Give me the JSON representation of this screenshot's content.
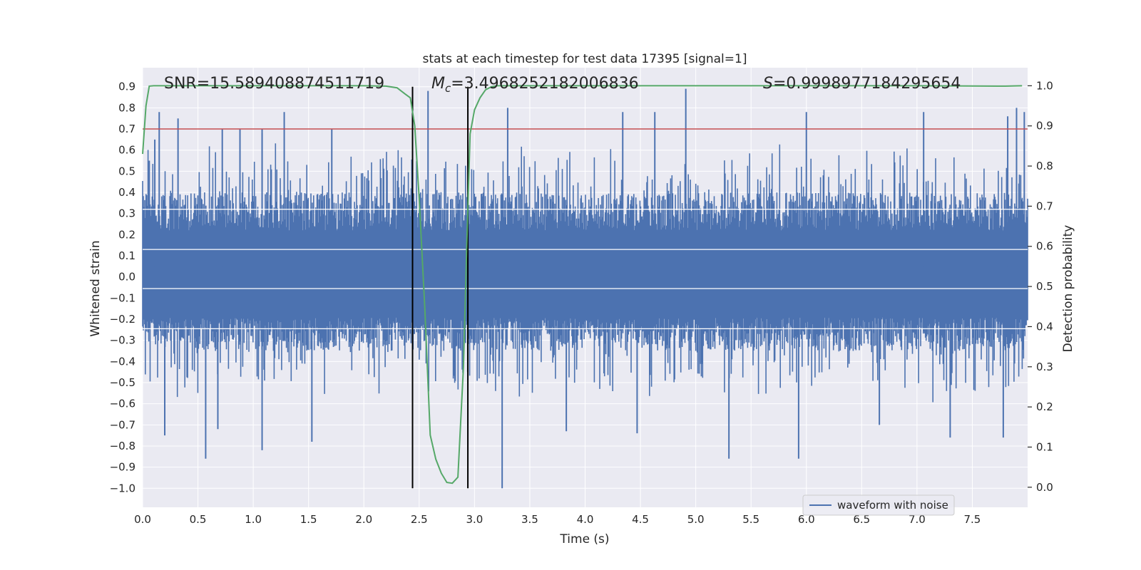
{
  "chart_data": {
    "type": "line",
    "title": "stats at each timestep for test data 17395 [signal=1]",
    "xlabel": "Time (s)",
    "ylabel_left": "Whitened strain",
    "ylabel_right": "Detection probability",
    "xlim": [
      0.0,
      8.0
    ],
    "ylim_left": [
      -1.09,
      0.99
    ],
    "ylim_right": [
      -0.05,
      1.045
    ],
    "x_ticks": [
      "0.0",
      "0.5",
      "1.0",
      "1.5",
      "2.0",
      "2.5",
      "3.0",
      "3.5",
      "4.0",
      "4.5",
      "5.0",
      "5.5",
      "6.0",
      "6.5",
      "7.0",
      "7.5"
    ],
    "x_tick_values": [
      0.0,
      0.5,
      1.0,
      1.5,
      2.0,
      2.5,
      3.0,
      3.5,
      4.0,
      4.5,
      5.0,
      5.5,
      6.0,
      6.5,
      7.0,
      7.5
    ],
    "y_left_ticks": [
      "0.9",
      "0.8",
      "0.7",
      "0.6",
      "0.5",
      "0.4",
      "0.3",
      "0.2",
      "0.1",
      "0.0",
      "−0.1",
      "−0.2",
      "−0.3",
      "−0.4",
      "−0.5",
      "−0.6",
      "−0.7",
      "−0.8",
      "−0.9",
      "−1.0"
    ],
    "y_left_tick_values": [
      0.9,
      0.8,
      0.7,
      0.6,
      0.5,
      0.4,
      0.3,
      0.2,
      0.1,
      0.0,
      -0.1,
      -0.2,
      -0.3,
      -0.4,
      -0.5,
      -0.6,
      -0.7,
      -0.8,
      -0.9,
      -1.0
    ],
    "y_right_ticks": [
      "1.0",
      "0.9",
      "0.8",
      "0.7",
      "0.6",
      "0.5",
      "0.4",
      "0.3",
      "0.2",
      "0.1",
      "0.0"
    ],
    "y_right_tick_values": [
      1.0,
      0.9,
      0.8,
      0.7,
      0.6,
      0.5,
      0.4,
      0.3,
      0.2,
      0.1,
      0.0
    ],
    "annotations": {
      "snr": "SNR=15.589408874511719",
      "mc_symbol": "M",
      "mc_subscript": "c",
      "mc_value": "=3.4968252182006836",
      "s_symbol": "S",
      "s_value": "=0.9998977184295654"
    },
    "legend": {
      "placement": "lower-right",
      "entries": [
        "waveform with noise"
      ]
    },
    "grid": true,
    "threshold_line": {
      "y": 0.7,
      "axis": "left",
      "color": "#c44e52"
    },
    "vertical_lines": [
      2.44,
      2.94
    ],
    "waveform": {
      "name": "waveform with noise",
      "color": "#4c72b0",
      "x_range": [
        0.0,
        8.0
      ],
      "typical_envelope": [
        -0.35,
        0.4
      ],
      "peaks_high": [
        [
          0.06,
          0.55
        ],
        [
          0.11,
          0.65
        ],
        [
          0.15,
          0.78
        ],
        [
          0.32,
          0.75
        ],
        [
          0.72,
          0.7
        ],
        [
          0.88,
          0.7
        ],
        [
          1.08,
          0.68
        ],
        [
          1.08,
          0.7
        ],
        [
          1.28,
          0.78
        ],
        [
          1.71,
          0.7
        ],
        [
          2.58,
          0.88
        ],
        [
          3.3,
          0.8
        ],
        [
          4.34,
          0.78
        ],
        [
          4.63,
          0.78
        ],
        [
          4.91,
          0.89
        ],
        [
          6.0,
          0.78
        ],
        [
          7.06,
          0.78
        ],
        [
          7.82,
          0.76
        ],
        [
          7.9,
          0.8
        ],
        [
          7.97,
          0.78
        ]
      ],
      "peaks_low": [
        [
          0.2,
          -0.75
        ],
        [
          0.57,
          -0.86
        ],
        [
          0.68,
          -0.72
        ],
        [
          1.08,
          -0.82
        ],
        [
          1.53,
          -0.78
        ],
        [
          3.25,
          -1.0
        ],
        [
          3.83,
          -0.73
        ],
        [
          4.47,
          -0.74
        ],
        [
          5.3,
          -0.86
        ],
        [
          5.93,
          -0.86
        ],
        [
          6.66,
          -0.7
        ],
        [
          7.3,
          -0.76
        ],
        [
          7.78,
          -0.76
        ]
      ]
    },
    "series": [
      {
        "name": "detection probability",
        "axis": "right",
        "color": "#55a868",
        "x": [
          0.0,
          0.03,
          0.06,
          0.1,
          0.2,
          0.5,
          1.0,
          1.5,
          2.0,
          2.2,
          2.3,
          2.37,
          2.42,
          2.46,
          2.5,
          2.55,
          2.6,
          2.65,
          2.7,
          2.75,
          2.8,
          2.85,
          2.9,
          2.93,
          2.96,
          3.0,
          3.05,
          3.1,
          3.15,
          3.2,
          3.4,
          4.0,
          5.0,
          6.0,
          7.0,
          7.8,
          7.95
        ],
        "y": [
          0.83,
          0.95,
          0.999,
          1.0,
          1.0,
          1.0,
          1.0,
          1.0,
          1.0,
          0.999,
          0.995,
          0.98,
          0.97,
          0.9,
          0.72,
          0.45,
          0.13,
          0.07,
          0.035,
          0.012,
          0.01,
          0.025,
          0.3,
          0.6,
          0.88,
          0.94,
          0.97,
          0.99,
          0.997,
          1.0,
          1.0,
          1.0,
          1.0,
          1.0,
          1.0,
          0.999,
          1.0
        ]
      }
    ]
  }
}
